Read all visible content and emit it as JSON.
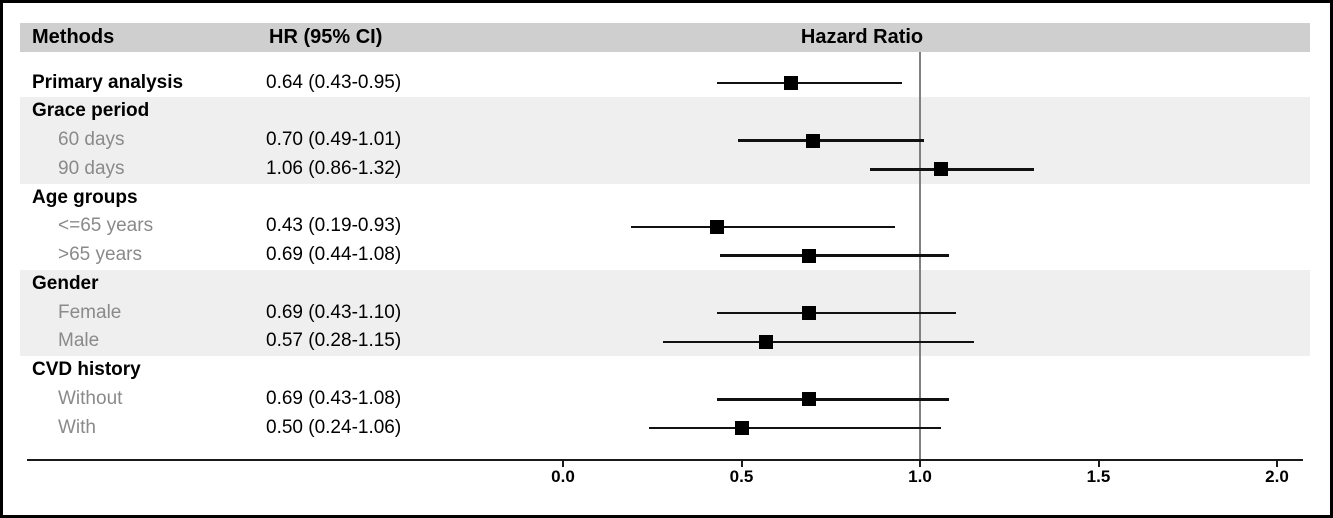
{
  "chart_data": {
    "type": "forest",
    "title": "Hazard Ratio",
    "columns": {
      "methods": "Methods",
      "hr_ci": "HR (95% CI)"
    },
    "axis": {
      "min": 0.0,
      "max": 2.0,
      "ticks": [
        0.0,
        0.5,
        1.0,
        1.5,
        2.0
      ],
      "tick_labels": [
        "0.0",
        "0.5",
        "1.0",
        "1.5",
        "2.0"
      ],
      "reference_line": 1.0
    },
    "rows": [
      {
        "label": "Primary analysis",
        "kind": "group",
        "shaded": false,
        "hr_text": "0.64 (0.43-0.95)",
        "est": 0.64,
        "lo": 0.43,
        "hi": 0.95
      },
      {
        "label": "Grace period",
        "kind": "group",
        "shaded": true,
        "hr_text": null,
        "est": null,
        "lo": null,
        "hi": null
      },
      {
        "label": "60 days",
        "kind": "sub",
        "shaded": true,
        "hr_text": "0.70 (0.49-1.01)",
        "est": 0.7,
        "lo": 0.49,
        "hi": 1.01
      },
      {
        "label": "90 days",
        "kind": "sub",
        "shaded": true,
        "hr_text": "1.06 (0.86-1.32)",
        "est": 1.06,
        "lo": 0.86,
        "hi": 1.32
      },
      {
        "label": "Age groups",
        "kind": "group",
        "shaded": false,
        "hr_text": null,
        "est": null,
        "lo": null,
        "hi": null
      },
      {
        "label": "<=65 years",
        "kind": "sub",
        "shaded": false,
        "hr_text": "0.43 (0.19-0.93)",
        "est": 0.43,
        "lo": 0.19,
        "hi": 0.93
      },
      {
        "label": ">65 years",
        "kind": "sub",
        "shaded": false,
        "hr_text": "0.69 (0.44-1.08)",
        "est": 0.69,
        "lo": 0.44,
        "hi": 1.08
      },
      {
        "label": "Gender",
        "kind": "group",
        "shaded": true,
        "hr_text": null,
        "est": null,
        "lo": null,
        "hi": null
      },
      {
        "label": "Female",
        "kind": "sub",
        "shaded": true,
        "hr_text": "0.69 (0.43-1.10)",
        "est": 0.69,
        "lo": 0.43,
        "hi": 1.1
      },
      {
        "label": "Male",
        "kind": "sub",
        "shaded": true,
        "hr_text": "0.57 (0.28-1.15)",
        "est": 0.57,
        "lo": 0.28,
        "hi": 1.15
      },
      {
        "label": "CVD history",
        "kind": "group",
        "shaded": false,
        "hr_text": null,
        "est": null,
        "lo": null,
        "hi": null
      },
      {
        "label": "Without",
        "kind": "sub",
        "shaded": false,
        "hr_text": "0.69 (0.43-1.08)",
        "est": 0.69,
        "lo": 0.43,
        "hi": 1.08
      },
      {
        "label": "With",
        "kind": "sub",
        "shaded": false,
        "hr_text": "0.50 (0.24-1.06)",
        "est": 0.5,
        "lo": 0.24,
        "hi": 1.06
      }
    ]
  },
  "colors": {
    "header_band": "#cfcfcf",
    "shaded_band": "#efefef",
    "subgroup_text": "#8a8a8a",
    "reference_line": "#808080",
    "ink": "#000000"
  }
}
